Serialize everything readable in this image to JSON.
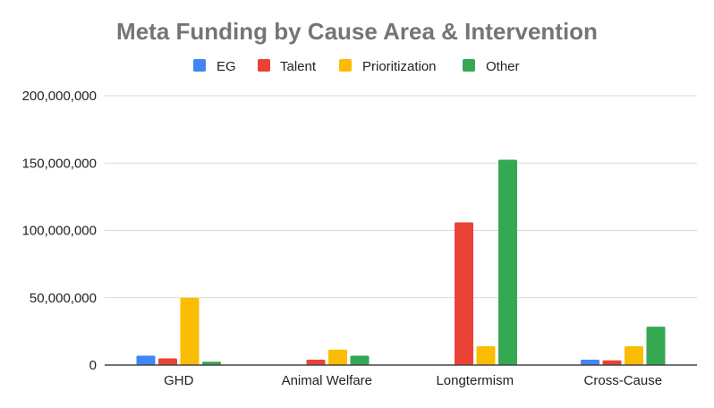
{
  "chart_data": {
    "type": "bar",
    "title": "Meta Funding by Cause Area & Intervention",
    "categories": [
      "GHD",
      "Animal Welfare",
      "Longtermism",
      "Cross-Cause"
    ],
    "series": [
      {
        "name": "EG",
        "color": "#4285f4",
        "values": [
          7000000,
          0,
          0,
          4000000
        ]
      },
      {
        "name": "Talent",
        "color": "#ea4335",
        "values": [
          5000000,
          4000000,
          106000000,
          3500000
        ]
      },
      {
        "name": "Prioritization",
        "color": "#fbbc04",
        "values": [
          50000000,
          11500000,
          14000000,
          14000000
        ]
      },
      {
        "name": "Other",
        "color": "#34a853",
        "values": [
          2500000,
          7000000,
          152500000,
          28500000
        ]
      }
    ],
    "y_ticks": [
      "0",
      "50,000,000",
      "100,000,000",
      "150,000,000",
      "200,000,000"
    ],
    "ylim": [
      0,
      200000000
    ],
    "xlabel": "",
    "ylabel": "",
    "legend_position": "top",
    "grid": true
  }
}
